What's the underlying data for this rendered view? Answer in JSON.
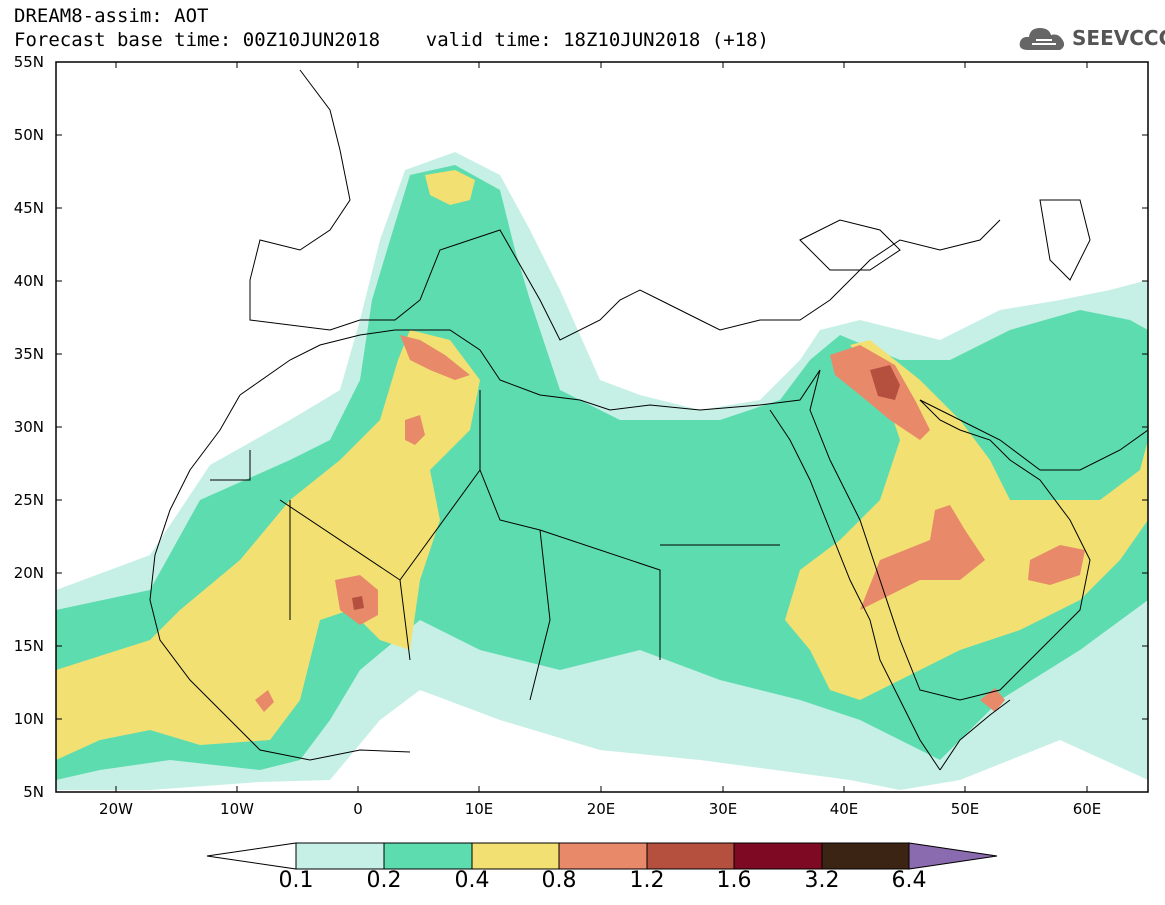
{
  "header": {
    "line1": "DREAM8-assim: AOT",
    "line2": "Forecast base time: 00Z10JUN2018    valid time: 18Z10JUN2018 (+18)"
  },
  "logo": {
    "text": "SEEVCCC",
    "icon": "cloud-icon"
  },
  "map": {
    "lat_labels": [
      "55N",
      "50N",
      "45N",
      "40N",
      "35N",
      "30N",
      "25N",
      "20N",
      "15N",
      "10N",
      "5N"
    ],
    "lon_labels": [
      "20W",
      "10W",
      "0",
      "10E",
      "20E",
      "30E",
      "40E",
      "50E",
      "60E"
    ]
  },
  "colorbar": {
    "labels": [
      "0.1",
      "0.2",
      "0.4",
      "0.8",
      "1.2",
      "1.6",
      "3.2",
      "6.4"
    ],
    "colors": [
      "#ffffff",
      "#c6f0e5",
      "#5ddcb0",
      "#f2e172",
      "#e8896a",
      "#b5503f",
      "#7d0a22",
      "#3b2413",
      "#8b6bb0"
    ]
  },
  "colors": {
    "c1": "#c6f0e5",
    "c2": "#5ddcb0",
    "c3": "#f2e172",
    "c4": "#e8896a",
    "c5": "#b5503f",
    "c6": "#7d0a22"
  }
}
